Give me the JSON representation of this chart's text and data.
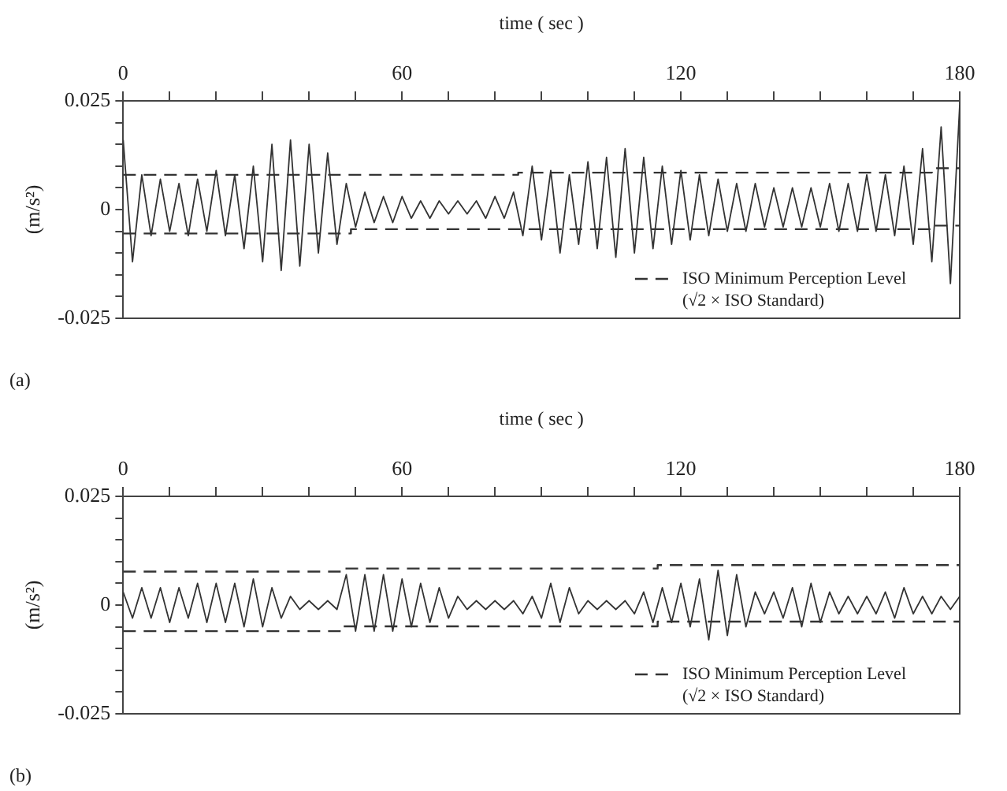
{
  "chart_data": [
    {
      "type": "line",
      "xlabel": "time ( sec )",
      "ylabel": "(m/s²)",
      "legend": "bottom right",
      "marker": "none",
      "grid": false,
      "x": [
        0,
        2,
        4,
        6,
        8,
        10,
        12,
        14,
        16,
        18,
        20,
        22,
        24,
        26,
        28,
        30,
        32,
        34,
        36,
        38,
        40,
        42,
        44,
        46,
        48,
        50,
        52,
        54,
        56,
        58,
        60,
        62,
        64,
        66,
        68,
        70,
        72,
        74,
        76,
        78,
        80,
        82,
        84,
        86,
        88,
        90,
        92,
        94,
        96,
        98,
        100,
        102,
        104,
        106,
        108,
        110,
        112,
        114,
        116,
        118,
        120,
        122,
        124,
        126,
        128,
        130,
        132,
        134,
        136,
        138,
        140,
        142,
        144,
        146,
        148,
        150,
        152,
        154,
        156,
        158,
        160,
        162,
        164,
        166,
        168,
        170,
        172,
        174,
        176,
        178,
        180
      ],
      "xlim": [
        0,
        180
      ],
      "xticks": [
        0,
        {
          "value": 10,
          "label": null
        },
        {
          "value": 20,
          "label": null
        },
        {
          "value": 30,
          "label": null
        },
        {
          "value": 40,
          "label": null
        },
        {
          "value": 50,
          "label": null
        },
        60,
        {
          "value": 70,
          "label": null
        },
        {
          "value": 80,
          "label": null
        },
        {
          "value": 90,
          "label": null
        },
        {
          "value": 100,
          "label": null
        },
        {
          "value": 110,
          "label": null
        },
        120,
        {
          "value": 130,
          "label": null
        },
        {
          "value": 140,
          "label": null
        },
        {
          "value": 150,
          "label": null
        },
        {
          "value": 160,
          "label": null
        },
        {
          "value": 170,
          "label": null
        },
        180
      ],
      "ylim": [
        -0.025,
        0.025
      ],
      "yticks": [
        -0.025,
        {
          "value": -0.02,
          "label": null
        },
        {
          "value": -0.015,
          "label": null
        },
        {
          "value": -0.01,
          "label": null
        },
        {
          "value": -0.005,
          "label": null
        },
        0,
        {
          "value": 0.005,
          "label": null
        },
        {
          "value": 0.01,
          "label": null
        },
        {
          "value": 0.015,
          "label": null
        },
        {
          "value": 0.02,
          "label": null
        },
        0.025
      ],
      "series": [
        {
          "color": "#333333",
          "values": [
            0.016,
            -0.012,
            0.008,
            -0.006,
            0.007,
            -0.005,
            0.006,
            -0.006,
            0.007,
            -0.005,
            0.009,
            -0.006,
            0.008,
            -0.009,
            0.01,
            -0.012,
            0.015,
            -0.014,
            0.016,
            -0.013,
            0.015,
            -0.01,
            0.013,
            -0.008,
            0.006,
            -0.004,
            0.004,
            -0.003,
            0.003,
            -0.003,
            0.003,
            -0.002,
            0.002,
            -0.002,
            0.002,
            -0.001,
            0.002,
            -0.001,
            0.002,
            -0.002,
            0.003,
            -0.002,
            0.004,
            -0.006,
            0.01,
            -0.007,
            0.009,
            -0.01,
            0.008,
            -0.008,
            0.011,
            -0.009,
            0.012,
            -0.011,
            0.014,
            -0.01,
            0.012,
            -0.009,
            0.01,
            -0.008,
            0.009,
            -0.007,
            0.008,
            -0.006,
            0.007,
            -0.005,
            0.006,
            -0.005,
            0.006,
            -0.004,
            0.005,
            -0.004,
            0.005,
            -0.004,
            0.005,
            -0.004,
            0.006,
            -0.005,
            0.006,
            -0.005,
            0.008,
            -0.005,
            0.008,
            -0.006,
            0.01,
            -0.008,
            0.014,
            -0.012,
            0.019,
            -0.017,
            0.024
          ]
        },
        {
          "name": "ISO Minimum Perception Level",
          "color": "#333333",
          "line_style": "dashed",
          "x": [
            0,
            49,
            49,
            85,
            85,
            174,
            174,
            180
          ],
          "values": [
            0.008,
            0.008,
            0.008,
            0.008,
            0.0085,
            0.0085,
            0.0095,
            0.0095
          ]
        },
        {
          "color": "#333333",
          "line_style": "dashed",
          "x": [
            0,
            49,
            49,
            174,
            174,
            180
          ],
          "values": [
            -0.0055,
            -0.0055,
            -0.0045,
            -0.0045,
            -0.0037,
            -0.0037
          ]
        }
      ],
      "annotations": [
        "(√2 × ISO Standard)",
        "(a)"
      ]
    },
    {
      "type": "line",
      "xlabel": "time ( sec )",
      "ylabel": "(m/s²)",
      "legend": "bottom right",
      "marker": "none",
      "grid": false,
      "x": [
        0,
        2,
        4,
        6,
        8,
        10,
        12,
        14,
        16,
        18,
        20,
        22,
        24,
        26,
        28,
        30,
        32,
        34,
        36,
        38,
        40,
        42,
        44,
        46,
        48,
        50,
        52,
        54,
        56,
        58,
        60,
        62,
        64,
        66,
        68,
        70,
        72,
        74,
        76,
        78,
        80,
        82,
        84,
        86,
        88,
        90,
        92,
        94,
        96,
        98,
        100,
        102,
        104,
        106,
        108,
        110,
        112,
        114,
        116,
        118,
        120,
        122,
        124,
        126,
        128,
        130,
        132,
        134,
        136,
        138,
        140,
        142,
        144,
        146,
        148,
        150,
        152,
        154,
        156,
        158,
        160,
        162,
        164,
        166,
        168,
        170,
        172,
        174,
        176,
        178,
        180
      ],
      "xlim": [
        0,
        180
      ],
      "xticks": [
        0,
        {
          "value": 10,
          "label": null
        },
        {
          "value": 20,
          "label": null
        },
        {
          "value": 30,
          "label": null
        },
        {
          "value": 40,
          "label": null
        },
        {
          "value": 50,
          "label": null
        },
        60,
        {
          "value": 70,
          "label": null
        },
        {
          "value": 80,
          "label": null
        },
        {
          "value": 90,
          "label": null
        },
        {
          "value": 100,
          "label": null
        },
        {
          "value": 110,
          "label": null
        },
        120,
        {
          "value": 130,
          "label": null
        },
        {
          "value": 140,
          "label": null
        },
        {
          "value": 150,
          "label": null
        },
        {
          "value": 160,
          "label": null
        },
        {
          "value": 170,
          "label": null
        },
        180
      ],
      "ylim": [
        -0.025,
        0.025
      ],
      "yticks": [
        -0.025,
        {
          "value": -0.02,
          "label": null
        },
        {
          "value": -0.015,
          "label": null
        },
        {
          "value": -0.01,
          "label": null
        },
        {
          "value": -0.005,
          "label": null
        },
        0,
        {
          "value": 0.005,
          "label": null
        },
        {
          "value": 0.01,
          "label": null
        },
        {
          "value": 0.015,
          "label": null
        },
        {
          "value": 0.02,
          "label": null
        },
        0.025
      ],
      "series": [
        {
          "color": "#333333",
          "values": [
            0.003,
            -0.003,
            0.004,
            -0.003,
            0.004,
            -0.004,
            0.004,
            -0.003,
            0.005,
            -0.004,
            0.005,
            -0.004,
            0.005,
            -0.005,
            0.006,
            -0.005,
            0.004,
            -0.003,
            0.002,
            -0.001,
            0.001,
            -0.001,
            0.001,
            -0.001,
            0.007,
            -0.006,
            0.007,
            -0.006,
            0.007,
            -0.006,
            0.006,
            -0.005,
            0.005,
            -0.004,
            0.004,
            -0.003,
            0.002,
            -0.001,
            0.001,
            -0.001,
            0.001,
            -0.001,
            0.001,
            -0.002,
            0.002,
            -0.003,
            0.005,
            -0.004,
            0.004,
            -0.002,
            0.001,
            -0.001,
            0.001,
            -0.001,
            0.001,
            -0.002,
            0.003,
            -0.004,
            0.004,
            -0.004,
            0.005,
            -0.005,
            0.006,
            -0.008,
            0.008,
            -0.007,
            0.007,
            -0.005,
            0.003,
            -0.002,
            0.003,
            -0.003,
            0.004,
            -0.005,
            0.005,
            -0.004,
            0.003,
            -0.002,
            0.002,
            -0.002,
            0.002,
            -0.002,
            0.003,
            -0.003,
            0.004,
            -0.002,
            0.002,
            -0.002,
            0.002,
            -0.001,
            0.002
          ]
        },
        {
          "name": "ISO Minimum Perception Level",
          "color": "#333333",
          "line_style": "dashed",
          "x": [
            0,
            47,
            47,
            115,
            115,
            180
          ],
          "values": [
            0.0077,
            0.0077,
            0.0084,
            0.0084,
            0.0092,
            0.0092
          ]
        },
        {
          "color": "#333333",
          "line_style": "dashed",
          "x": [
            0,
            47,
            47,
            115,
            115,
            180
          ],
          "values": [
            -0.006,
            -0.006,
            -0.0049,
            -0.0049,
            -0.0038,
            -0.0038
          ]
        }
      ],
      "annotations": [
        "(√2 × ISO Standard)",
        "(b)"
      ]
    }
  ]
}
